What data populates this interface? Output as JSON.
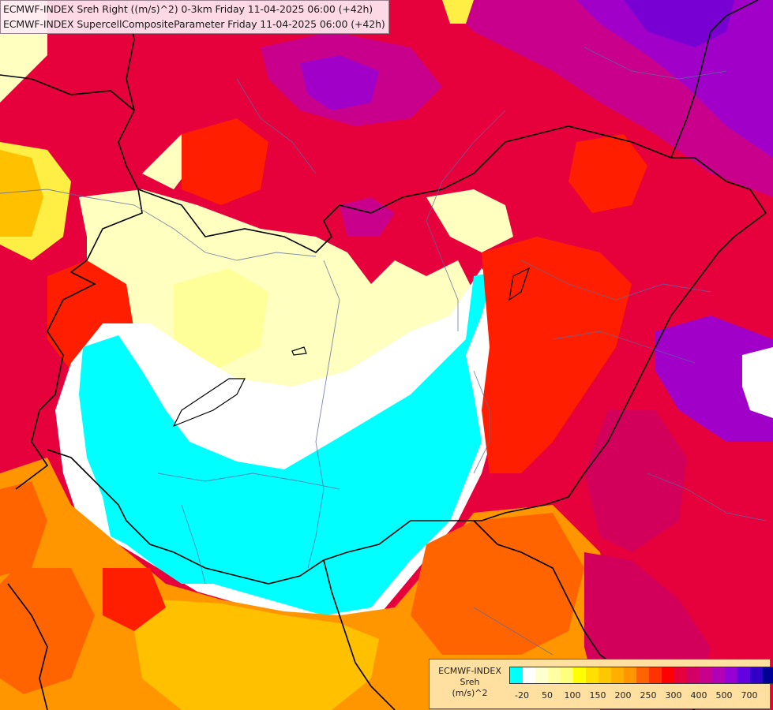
{
  "titles": [
    "ECMWF-INDEX Sreh Right ((m/s)^2) 0-3km Friday 11-04-2025 06:00 (+42h)",
    "ECMWF-INDEX SupercellCompositeParameter Friday 11-04-2025 06:00 (+42h)"
  ],
  "legend": {
    "title_lines": [
      "ECMWF-INDEX",
      "Sreh",
      "(m/s)^2"
    ],
    "colors": [
      "#00ffff",
      "#ffffff",
      "#ffffd2",
      "#ffffa5",
      "#ffff7d",
      "#ffff00",
      "#ffe100",
      "#ffc800",
      "#ffaf00",
      "#ff9600",
      "#ff6400",
      "#ff3200",
      "#ff0000",
      "#e6003c",
      "#d20064",
      "#c8008c",
      "#b400b4",
      "#9600d2",
      "#6400e1",
      "#3200c8",
      "#000096"
    ],
    "ticks": [
      "-20",
      "50",
      "100",
      "150",
      "200",
      "250",
      "300",
      "400",
      "500",
      "700"
    ]
  },
  "map_colors": {
    "cyan": "#00ffff",
    "white": "#ffffff",
    "pale_yellow": "#ffffc0",
    "light_yellow": "#ffff99",
    "yellow": "#ffee44",
    "orange_yellow": "#ffc000",
    "orange": "#ff9600",
    "dark_orange": "#ff6400",
    "red": "#ff1e00",
    "crimson": "#e6003c",
    "magenta_red": "#d2005a",
    "magenta": "#c8008c",
    "purple": "#a000c8",
    "violet": "#7800d2"
  }
}
